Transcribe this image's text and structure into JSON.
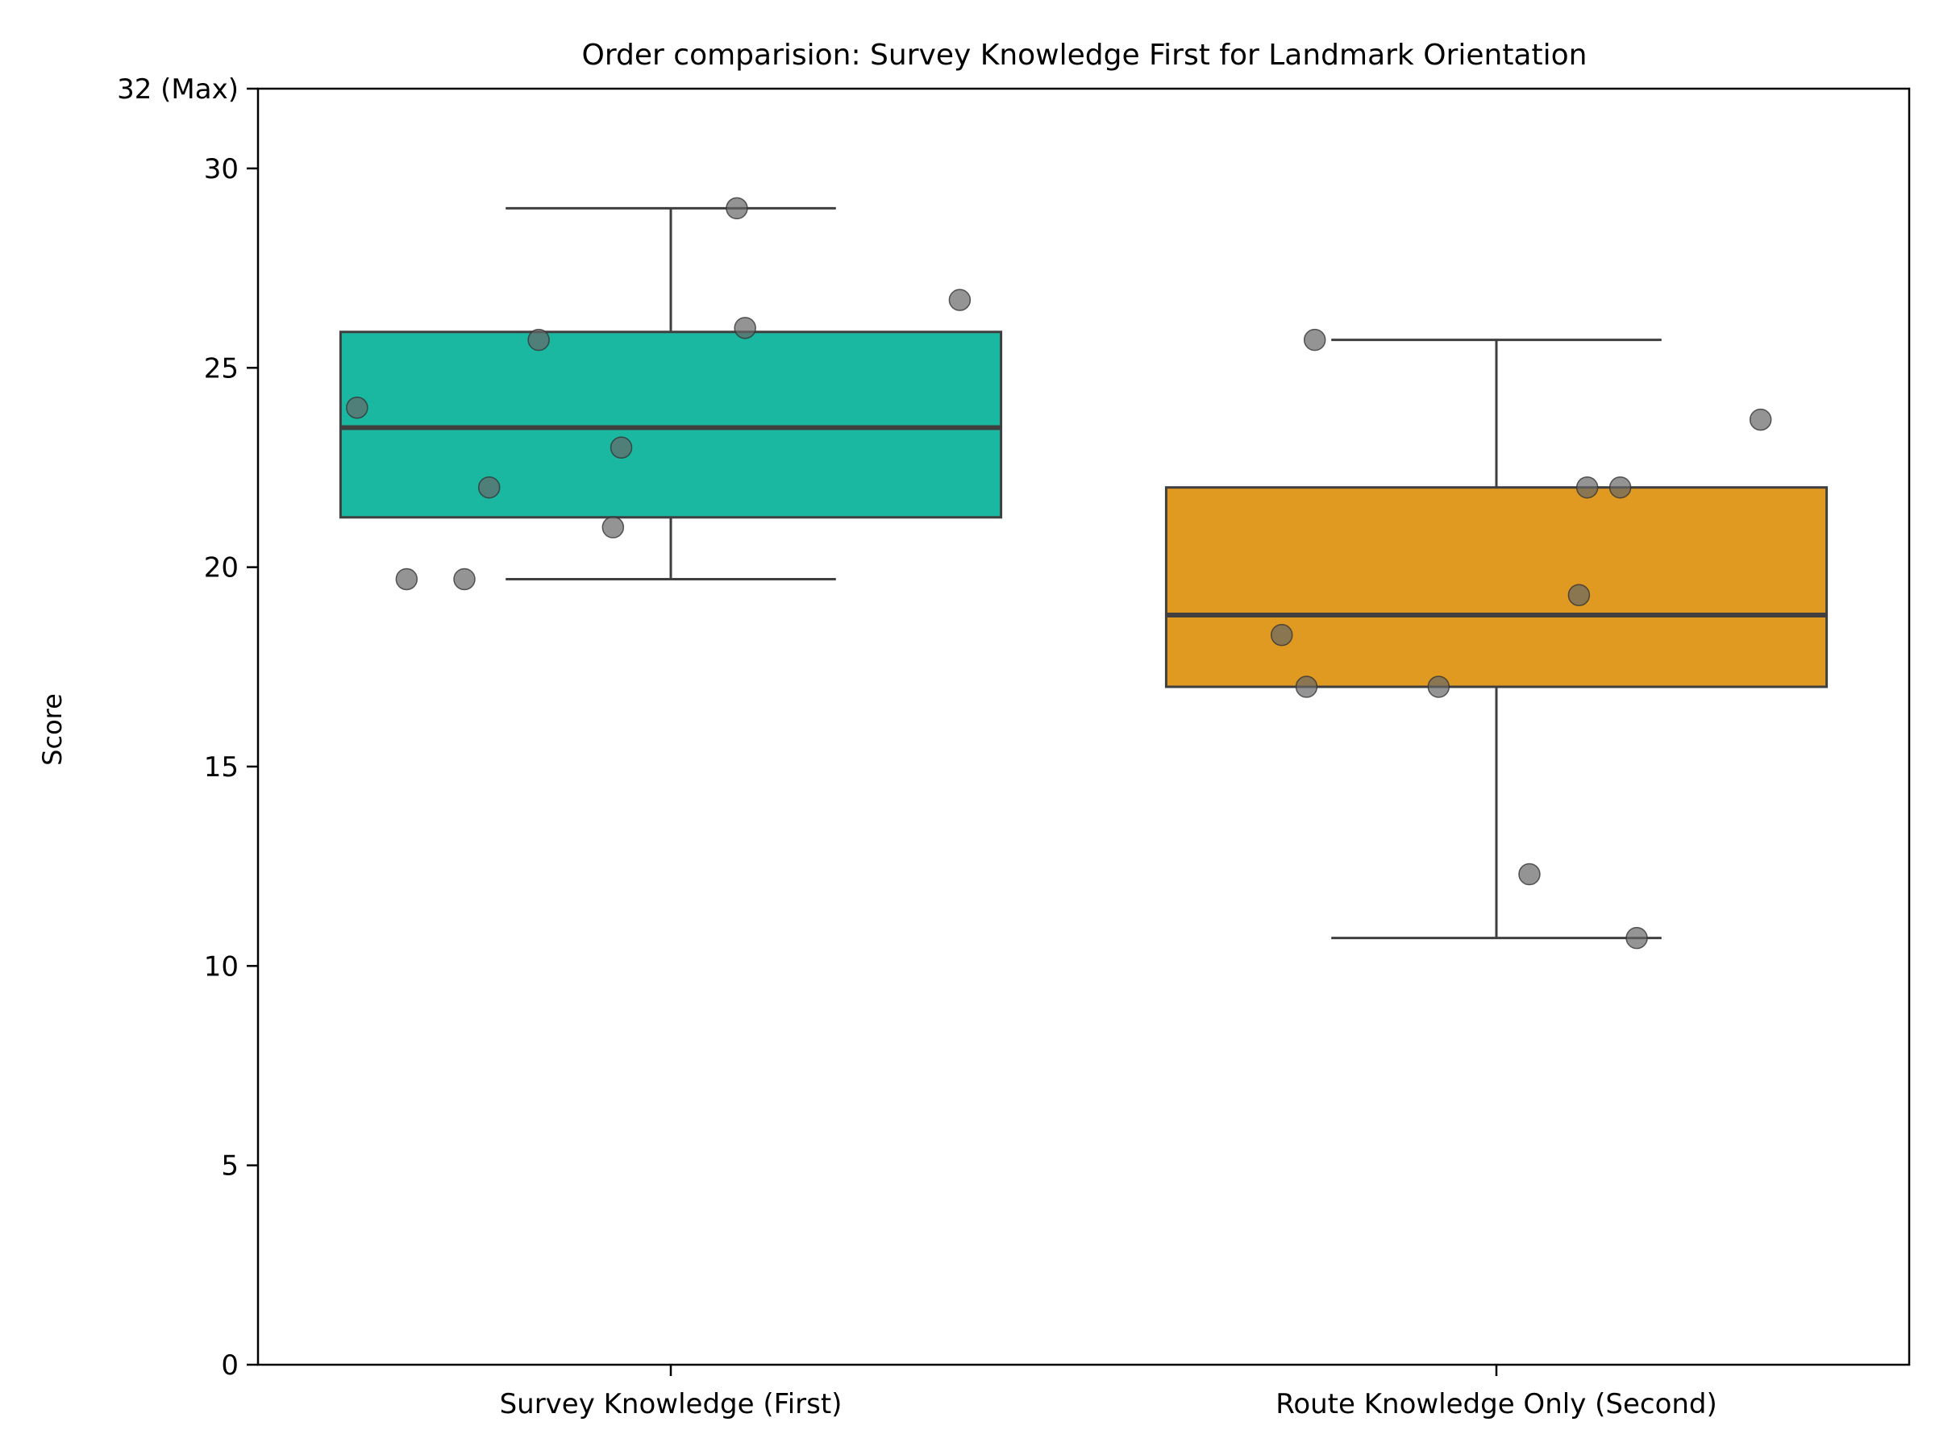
{
  "chart_data": {
    "type": "box",
    "title": "Order comparision: Survey Knowledge First for Landmark Orientation",
    "xlabel": "",
    "ylabel": "Score",
    "ylim": [
      0,
      32
    ],
    "yticks": [
      {
        "value": 0,
        "label": "0"
      },
      {
        "value": 5,
        "label": "5"
      },
      {
        "value": 10,
        "label": "10"
      },
      {
        "value": 15,
        "label": "15"
      },
      {
        "value": 20,
        "label": "20"
      },
      {
        "value": 25,
        "label": "25"
      },
      {
        "value": 30,
        "label": "30"
      },
      {
        "value": 32,
        "label": "32 (Max)"
      }
    ],
    "categories": [
      "Survey Knowledge (First)",
      "Route Knowledge Only (Second)"
    ],
    "grid": false,
    "boxes": [
      {
        "category": "Survey Knowledge (First)",
        "color": "#1ab8a1",
        "whisker_low": 19.7,
        "q1": 21.25,
        "median": 23.5,
        "q3": 25.9,
        "whisker_high": 29.0
      },
      {
        "category": "Route Knowledge Only (Second)",
        "color": "#e09a22",
        "whisker_low": 10.7,
        "q1": 17.0,
        "median": 18.8,
        "q3": 22.0,
        "whisker_high": 25.7
      }
    ],
    "points": [
      {
        "category": "Survey Knowledge (First)",
        "jitter": 0.08,
        "y": 29.0
      },
      {
        "category": "Survey Knowledge (First)",
        "jitter": 0.35,
        "y": 26.7
      },
      {
        "category": "Survey Knowledge (First)",
        "jitter": 0.09,
        "y": 26.0
      },
      {
        "category": "Survey Knowledge (First)",
        "jitter": -0.16,
        "y": 25.7
      },
      {
        "category": "Survey Knowledge (First)",
        "jitter": -0.38,
        "y": 24.0
      },
      {
        "category": "Survey Knowledge (First)",
        "jitter": -0.06,
        "y": 23.0
      },
      {
        "category": "Survey Knowledge (First)",
        "jitter": -0.22,
        "y": 22.0
      },
      {
        "category": "Survey Knowledge (First)",
        "jitter": -0.07,
        "y": 21.0
      },
      {
        "category": "Survey Knowledge (First)",
        "jitter": -0.32,
        "y": 19.7
      },
      {
        "category": "Survey Knowledge (First)",
        "jitter": -0.25,
        "y": 19.7
      },
      {
        "category": "Route Knowledge Only (Second)",
        "jitter": -0.22,
        "y": 25.7
      },
      {
        "category": "Route Knowledge Only (Second)",
        "jitter": 0.32,
        "y": 23.7
      },
      {
        "category": "Route Knowledge Only (Second)",
        "jitter": 0.11,
        "y": 22.0
      },
      {
        "category": "Route Knowledge Only (Second)",
        "jitter": 0.15,
        "y": 22.0
      },
      {
        "category": "Route Knowledge Only (Second)",
        "jitter": 0.1,
        "y": 19.3
      },
      {
        "category": "Route Knowledge Only (Second)",
        "jitter": -0.26,
        "y": 18.3
      },
      {
        "category": "Route Knowledge Only (Second)",
        "jitter": -0.23,
        "y": 17.0
      },
      {
        "category": "Route Knowledge Only (Second)",
        "jitter": -0.07,
        "y": 17.0
      },
      {
        "category": "Route Knowledge Only (Second)",
        "jitter": 0.04,
        "y": 12.3
      },
      {
        "category": "Route Knowledge Only (Second)",
        "jitter": 0.17,
        "y": 10.7
      }
    ],
    "point_color": "#666666"
  }
}
